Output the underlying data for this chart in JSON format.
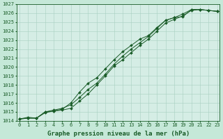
{
  "title": "Graphe pression niveau de la mer (hPa)",
  "bg_color": "#c5e8d8",
  "plot_bg_color": "#d5ede5",
  "grid_color": "#a8cfc0",
  "line_color": "#1a5c28",
  "x_values": [
    0,
    1,
    2,
    3,
    4,
    5,
    6,
    7,
    8,
    9,
    10,
    11,
    12,
    13,
    14,
    15,
    16,
    17,
    18,
    19,
    20,
    21,
    22,
    23
  ],
  "line1": [
    1014.2,
    1014.4,
    1014.3,
    1014.9,
    1015.1,
    1015.2,
    1015.4,
    1016.2,
    1017.0,
    1018.0,
    1019.0,
    1020.1,
    1020.8,
    1021.6,
    1022.4,
    1023.1,
    1024.0,
    1024.9,
    1025.3,
    1025.7,
    1026.3,
    1026.4,
    1026.3,
    1026.2
  ],
  "line2": [
    1014.2,
    1014.3,
    1014.3,
    1015.0,
    1015.2,
    1015.4,
    1015.8,
    1016.6,
    1017.5,
    1018.2,
    1019.2,
    1020.3,
    1021.2,
    1022.0,
    1022.7,
    1023.4,
    1024.3,
    1025.2,
    1025.5,
    1025.9,
    1026.4,
    1026.4,
    1026.3,
    1026.2
  ],
  "line3": [
    1014.2,
    1014.3,
    1014.3,
    1015.0,
    1015.1,
    1015.3,
    1016.0,
    1017.2,
    1018.2,
    1018.8,
    1019.8,
    1020.8,
    1021.7,
    1022.4,
    1023.1,
    1023.5,
    1024.4,
    1025.2,
    1025.5,
    1025.6,
    1026.4,
    1026.4,
    1026.3,
    1026.2
  ],
  "ylim": [
    1014,
    1027
  ],
  "yticks": [
    1014,
    1015,
    1016,
    1017,
    1018,
    1019,
    1020,
    1021,
    1022,
    1023,
    1024,
    1025,
    1026,
    1027
  ],
  "xticks": [
    0,
    1,
    2,
    3,
    4,
    5,
    6,
    7,
    8,
    9,
    10,
    11,
    12,
    13,
    14,
    15,
    16,
    17,
    18,
    19,
    20,
    21,
    22,
    23
  ],
  "tick_fontsize": 5.0,
  "title_fontsize": 6.5,
  "markersize": 2.0,
  "linewidth": 0.7
}
